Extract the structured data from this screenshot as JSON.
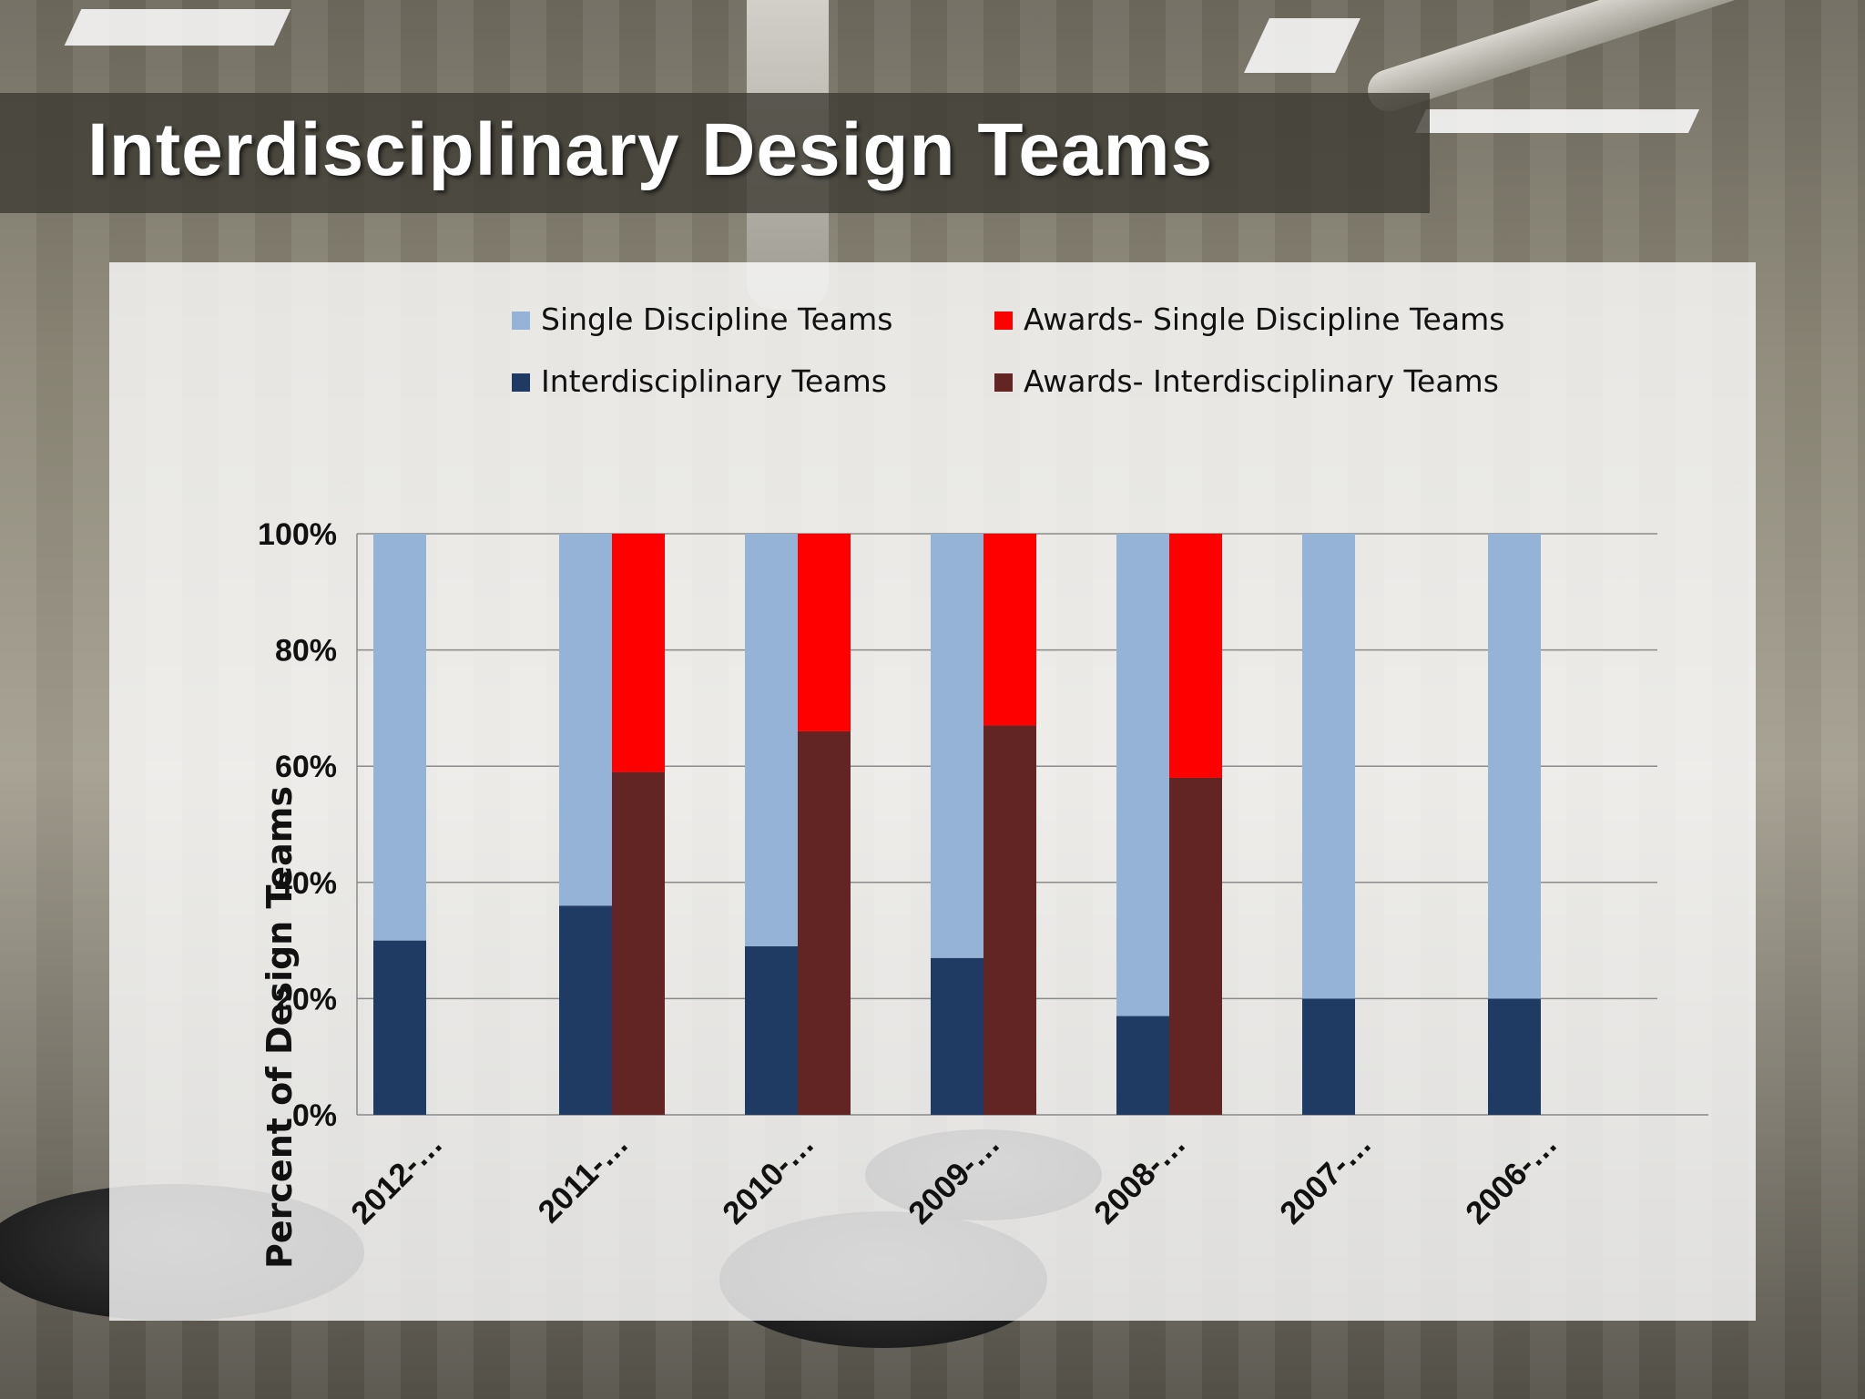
{
  "slide": {
    "title": "Interdisciplinary Design Teams"
  },
  "colors": {
    "single": "#95b3d7",
    "inter": "#1f3b63",
    "award_single": "#ff0000",
    "award_inter": "#632523"
  },
  "chart_data": {
    "type": "bar",
    "stacked": "percent",
    "title": "",
    "xlabel": "",
    "ylabel": "Percent of Design Teams",
    "ylim": [
      0,
      100
    ],
    "yticks": [
      "0%",
      "20%",
      "40%",
      "60%",
      "80%",
      "100%"
    ],
    "ytick_values": [
      0,
      20,
      40,
      60,
      80,
      100
    ],
    "grid": true,
    "legend_position": "top",
    "categories": [
      "2012-…",
      "2011-…",
      "2010-…",
      "2009-…",
      "2008-…",
      "2007-…",
      "2006-…"
    ],
    "stacks": [
      {
        "name": "Teams",
        "series": [
          {
            "name": "Interdisciplinary Teams",
            "color": "#1f3b63",
            "values": [
              30,
              36,
              29,
              27,
              17,
              20,
              20
            ]
          },
          {
            "name": "Single Discipline Teams",
            "color": "#95b3d7",
            "values": [
              70,
              64,
              71,
              73,
              83,
              80,
              80
            ]
          }
        ]
      },
      {
        "name": "Awards",
        "series": [
          {
            "name": "Awards- Interdisciplinary Teams",
            "color": "#632523",
            "values": [
              0,
              59,
              66,
              67,
              58,
              0,
              0
            ]
          },
          {
            "name": "Awards- Single Discipline Teams",
            "color": "#ff0000",
            "values": [
              0,
              41,
              34,
              33,
              42,
              0,
              0
            ]
          }
        ]
      }
    ],
    "legend": [
      {
        "name": "Single Discipline Teams",
        "color": "#95b3d7"
      },
      {
        "name": "Awards- Single Discipline Teams",
        "color": "#ff0000"
      },
      {
        "name": "Interdisciplinary Teams",
        "color": "#1f3b63"
      },
      {
        "name": "Awards- Interdisciplinary Teams",
        "color": "#632523"
      }
    ]
  }
}
